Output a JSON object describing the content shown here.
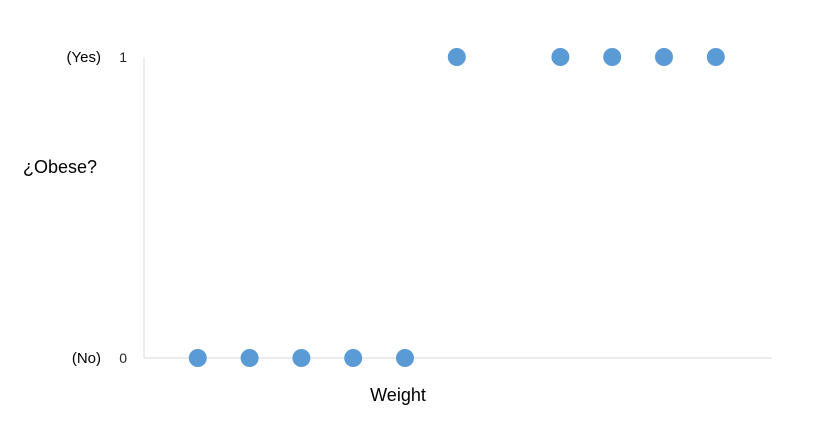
{
  "chart_data": {
    "type": "scatter",
    "title": "",
    "xlabel": "Weight",
    "ylabel": "¿Obese?",
    "y_ticks": [
      {
        "value": 0,
        "label": "0",
        "category": "(No)"
      },
      {
        "value": 1,
        "label": "1",
        "category": "(Yes)"
      }
    ],
    "ylim": [
      0,
      1
    ],
    "xlim": [
      0,
      12
    ],
    "series": [
      {
        "points": [
          {
            "x": 1,
            "y": 0
          },
          {
            "x": 2,
            "y": 0
          },
          {
            "x": 3,
            "y": 0
          },
          {
            "x": 4,
            "y": 0
          },
          {
            "x": 5,
            "y": 0
          },
          {
            "x": 6,
            "y": 1
          },
          {
            "x": 8,
            "y": 1
          },
          {
            "x": 9,
            "y": 1
          },
          {
            "x": 10,
            "y": 1
          },
          {
            "x": 11,
            "y": 1
          }
        ]
      }
    ],
    "grid": false,
    "legend": "none",
    "marker_color": "#5b9bd5"
  }
}
